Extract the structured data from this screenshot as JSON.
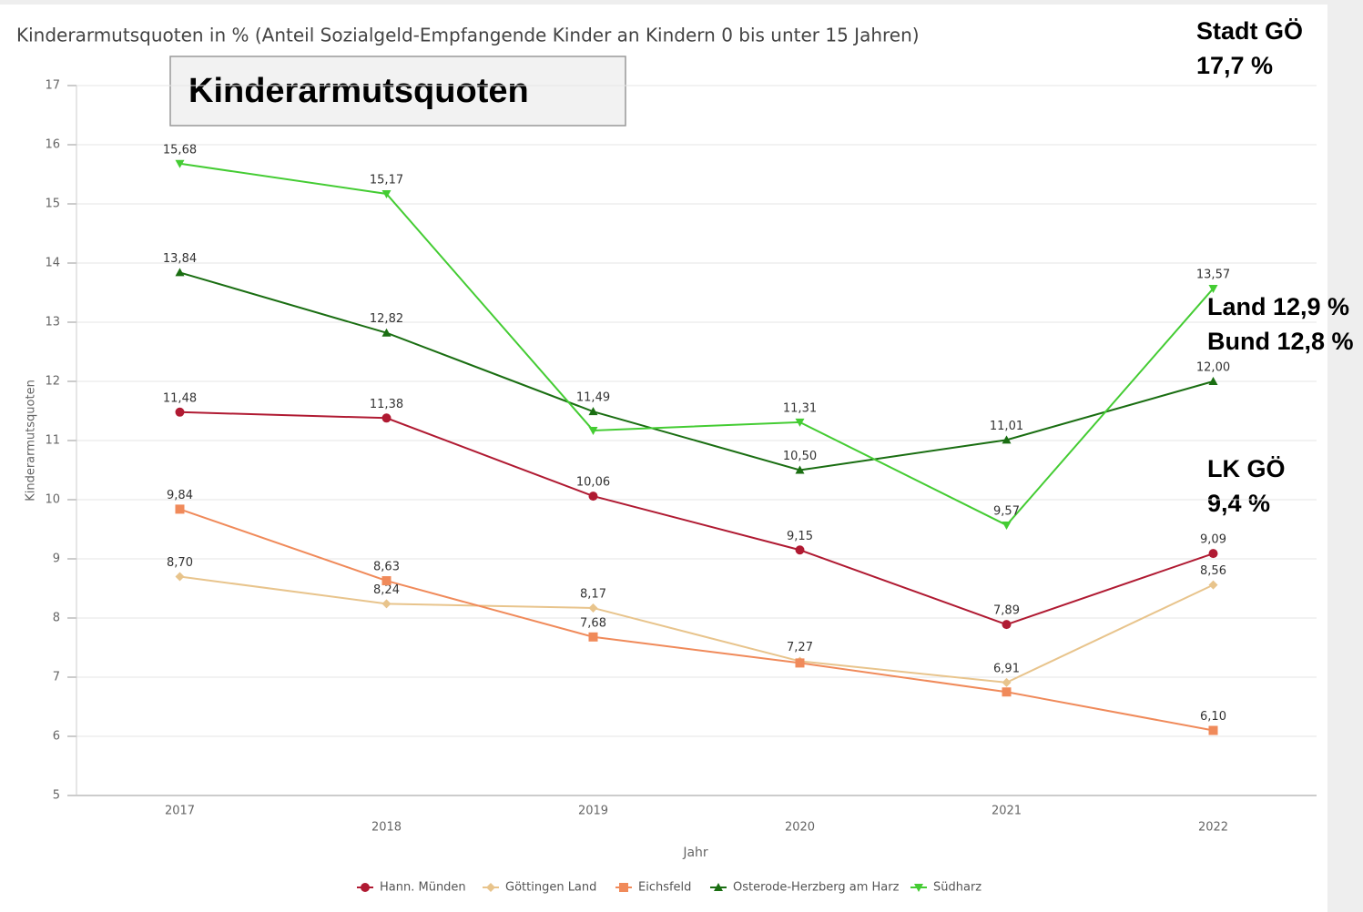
{
  "chart_data": {
    "type": "line",
    "title": "Kinderarmutsquoten in % (Anteil Sozialgeld-Empfangende Kinder an Kindern 0 bis unter 15 Jahren)",
    "box_title": "Kinderarmutsquoten",
    "y_label": "Kinderarmutsquoten",
    "x_label": "Jahr",
    "categories": [
      "2017",
      "2018",
      "2019",
      "2020",
      "2021",
      "2022"
    ],
    "ylim": [
      5,
      17
    ],
    "yticks": [
      5,
      6,
      7,
      8,
      9,
      10,
      11,
      12,
      13,
      14,
      15,
      16,
      17
    ],
    "grid": true,
    "legend": "bottom",
    "series": [
      {
        "name": "Hann. Münden",
        "color": "#b01a32",
        "marker": "circle",
        "values": [
          11.48,
          11.38,
          10.06,
          9.15,
          7.89,
          9.09
        ],
        "value_labels": [
          "11,48",
          "11,38",
          "10,06",
          "9,15",
          "7,89",
          "9,09"
        ]
      },
      {
        "name": "Göttingen Land",
        "color": "#e8c48c",
        "marker": "diamond",
        "values": [
          8.7,
          8.24,
          8.17,
          7.27,
          6.91,
          8.56
        ],
        "value_labels": [
          "8,70",
          "8,24",
          "8,17",
          "7,27",
          "6,91",
          "8,56"
        ]
      },
      {
        "name": "Eichsfeld",
        "color": "#f08a5a",
        "marker": "square",
        "values": [
          9.84,
          8.63,
          7.68,
          7.24,
          6.75,
          6.1
        ],
        "value_labels": [
          "9,84",
          "8,63",
          "7,68",
          null,
          null,
          "6,10"
        ]
      },
      {
        "name": "Osterode-Herzberg am Harz",
        "color": "#1a6e12",
        "marker": "triangle-up",
        "values": [
          13.84,
          12.82,
          11.49,
          10.5,
          11.01,
          12.0
        ],
        "value_labels": [
          "13,84",
          "12,82",
          "11,49",
          "10,50",
          "11,01",
          "12,00"
        ]
      },
      {
        "name": "Südharz",
        "color": "#44cc33",
        "marker": "triangle-down",
        "values": [
          15.68,
          15.17,
          11.17,
          11.31,
          9.57,
          13.57
        ],
        "value_labels": [
          "15,68",
          "15,17",
          null,
          "11,31",
          "9,57",
          "13,57"
        ]
      }
    ],
    "annotations": [
      "Stadt GÖ",
      "17,7 %",
      "Land 12,9 %",
      "Bund 12,8 %",
      "LK GÖ",
      "9,4 %"
    ]
  }
}
